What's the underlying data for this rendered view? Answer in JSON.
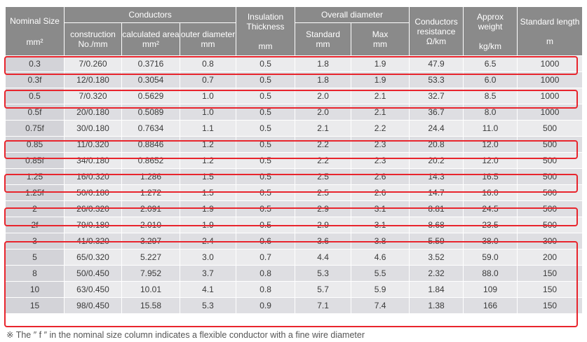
{
  "table": {
    "headers": {
      "nominal_size": "Nominal Size",
      "nominal_unit": "mm²",
      "conductors": "Conductors",
      "construction": "construction\nNo./mm",
      "calc_area": "calculated area\nmm²",
      "outer_diameter": "outer diameter\nmm",
      "insulation": "Insulation\nThickness\n\nmm",
      "overall_diameter": "Overall diameter",
      "standard": "Standard\nmm",
      "max": "Max\nmm",
      "resistance": "Conductors\nresistance\nΩ/km",
      "weight": "Approx weight\n\nkg/km",
      "length": "Standard length\n\nm"
    },
    "rows": [
      [
        "0.3",
        "7/0.260",
        "0.3716",
        "0.8",
        "0.5",
        "1.8",
        "1.9",
        "47.9",
        "6.5",
        "1000"
      ],
      [
        "0.3f",
        "12/0.180",
        "0.3054",
        "0.7",
        "0.5",
        "1.8",
        "1.9",
        "53.3",
        "6.0",
        "1000"
      ],
      [
        "0.5",
        "7/0.320",
        "0.5629",
        "1.0",
        "0.5",
        "2.0",
        "2.1",
        "32.7",
        "8.5",
        "1000"
      ],
      [
        "0.5f",
        "20/0.180",
        "0.5089",
        "1.0",
        "0.5",
        "2.0",
        "2.1",
        "36.7",
        "8.0",
        "1000"
      ],
      [
        "0.75f",
        "30/0.180",
        "0.7634",
        "1.1",
        "0.5",
        "2.1",
        "2.2",
        "24.4",
        "11.0",
        "500"
      ],
      [
        "0.85",
        "11/0.320",
        "0.8846",
        "1.2",
        "0.5",
        "2.2",
        "2.3",
        "20.8",
        "12.0",
        "500"
      ],
      [
        "0.85f",
        "34/0.180",
        "0.8652",
        "1.2",
        "0.5",
        "2.2",
        "2.3",
        "20.2",
        "12.0",
        "500"
      ],
      [
        "1.25",
        "16/0.320",
        "1.286",
        "1.5",
        "0.5",
        "2.5",
        "2.6",
        "14.3",
        "16.5",
        "500"
      ],
      [
        "1.25f",
        "50/0.180",
        "1.272",
        "1.5",
        "0.5",
        "2.5",
        "2.6",
        "14.7",
        "16.0",
        "500"
      ],
      [
        "2",
        "26/0.320",
        "2.091",
        "1.9",
        "0.5",
        "2.9",
        "3.1",
        "8.81",
        "24.5",
        "500"
      ],
      [
        "2f",
        "79/0.180",
        "2.010",
        "1.9",
        "0.5",
        "2.9",
        "3.1",
        "8.68",
        "23.5",
        "500"
      ],
      [
        "3",
        "41/0.320",
        "3.297",
        "2.4",
        "0.6",
        "3.6",
        "3.8",
        "5.59",
        "38.0",
        "300"
      ],
      [
        "5",
        "65/0.320",
        "5.227",
        "3.0",
        "0.7",
        "4.4",
        "4.6",
        "3.52",
        "59.0",
        "200"
      ],
      [
        "8",
        "50/0.450",
        "7.952",
        "3.7",
        "0.8",
        "5.3",
        "5.5",
        "2.32",
        "88.0",
        "150"
      ],
      [
        "10",
        "63/0.450",
        "10.01",
        "4.1",
        "0.8",
        "5.7",
        "5.9",
        "1.84",
        "109",
        "150"
      ],
      [
        "15",
        "98/0.450",
        "15.58",
        "5.3",
        "0.9",
        "7.1",
        "7.4",
        "1.38",
        "166",
        "150"
      ]
    ]
  },
  "footnote": "※ The ″ f ″ in the nominal size column indicates a flexible conductor with a fine wire diameter",
  "colors": {
    "header_bg": "#8a8a8a",
    "highlight": "#e8252d"
  }
}
